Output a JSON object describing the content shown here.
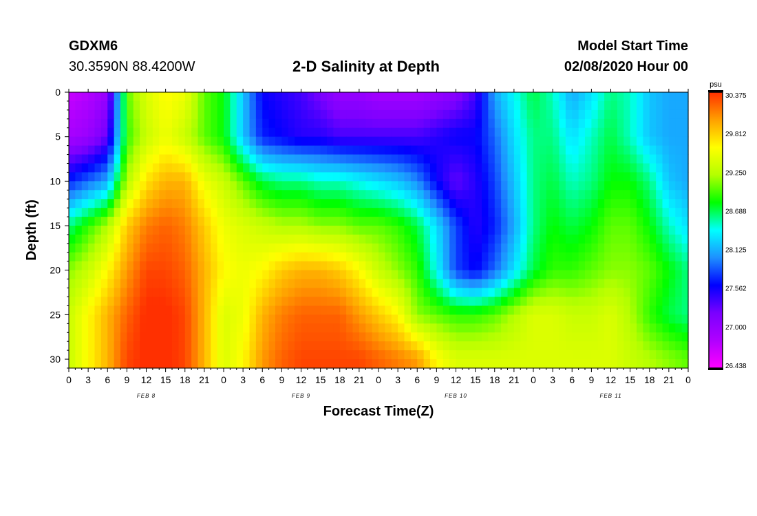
{
  "header": {
    "station_id": "GDXM6",
    "coordinates": "30.3590N 88.4200W",
    "title": "2-D Salinity at Depth",
    "model_start_label": "Model Start Time",
    "model_start_value": "02/08/2020 Hour 00"
  },
  "colors": {
    "scale": [
      "#ff00ff",
      "#b000ff",
      "#7a00ff",
      "#0000ff",
      "#1e90ff",
      "#00ffff",
      "#00ff00",
      "#b4ff00",
      "#ffff00",
      "#ffa000",
      "#ff3000"
    ]
  },
  "chart_data": {
    "type": "heatmap",
    "title": "2-D Salinity at Depth",
    "xlabel": "Forecast Time(Z)",
    "ylabel": "Depth (ft)",
    "x_hours_range": [
      0,
      96
    ],
    "x_tick_labels": [
      "0",
      "3",
      "6",
      "9",
      "12",
      "15",
      "18",
      "21",
      "0",
      "3",
      "6",
      "9",
      "12",
      "15",
      "18",
      "21",
      "0",
      "3",
      "6",
      "9",
      "12",
      "15",
      "18",
      "21",
      "0",
      "3",
      "6",
      "9",
      "12",
      "15",
      "18",
      "21",
      "0"
    ],
    "day_labels": [
      {
        "label": "FEB 8",
        "hour": 12
      },
      {
        "label": "FEB 9",
        "hour": 36
      },
      {
        "label": "FEB 10",
        "hour": 60
      },
      {
        "label": "FEB 11",
        "hour": 84
      }
    ],
    "y_range": [
      0,
      31
    ],
    "y_ticks": [
      0,
      5,
      10,
      15,
      20,
      25,
      30
    ],
    "y_tick_labels": [
      "0",
      "5",
      "10",
      "15",
      "20",
      "25",
      "30"
    ],
    "colorbar": {
      "unit": "psu",
      "min": 26.438,
      "max": 30.375,
      "labels": [
        "30.375",
        "29.812",
        "29.250",
        "28.688",
        "28.125",
        "27.562",
        "27.000",
        "26.438"
      ]
    },
    "grid_hours": [
      0,
      3,
      6,
      9,
      12,
      15,
      18,
      21,
      24,
      27,
      30,
      33,
      36,
      39,
      42,
      45,
      48,
      51,
      54,
      57,
      60,
      63,
      66,
      69,
      72,
      75,
      78,
      81,
      84,
      87,
      90,
      93,
      96
    ],
    "grid_depths": [
      0,
      5,
      10,
      15,
      20,
      25,
      30
    ],
    "salinity": [
      [
        26.7,
        26.8,
        27.0,
        29.0,
        29.4,
        29.6,
        29.5,
        29.0,
        28.8,
        28.2,
        27.6,
        27.5,
        27.4,
        27.2,
        27.0,
        27.0,
        26.9,
        26.9,
        26.9,
        27.0,
        27.1,
        27.4,
        28.1,
        28.4,
        28.7,
        28.5,
        28.1,
        28.3,
        28.6,
        28.5,
        28.2,
        28.1,
        28.1
      ],
      [
        26.9,
        27.0,
        27.3,
        28.9,
        29.3,
        29.5,
        29.3,
        29.0,
        28.8,
        28.2,
        27.7,
        27.6,
        27.5,
        27.5,
        27.4,
        27.4,
        27.4,
        27.4,
        27.4,
        27.5,
        27.6,
        27.6,
        27.9,
        28.3,
        28.6,
        28.6,
        28.3,
        28.5,
        28.7,
        28.5,
        28.2,
        28.1,
        28.1
      ],
      [
        27.7,
        27.9,
        28.1,
        29.2,
        29.7,
        29.9,
        29.9,
        29.5,
        29.3,
        29.0,
        28.7,
        28.6,
        28.6,
        28.5,
        28.5,
        28.4,
        28.3,
        28.2,
        28.0,
        27.6,
        27.3,
        27.5,
        27.8,
        28.2,
        28.6,
        28.7,
        28.5,
        28.6,
        28.8,
        28.8,
        28.6,
        28.2,
        28.1
      ],
      [
        28.6,
        28.9,
        29.2,
        29.8,
        30.1,
        30.2,
        30.1,
        29.8,
        29.5,
        29.4,
        29.3,
        29.2,
        29.2,
        29.1,
        29.1,
        29.0,
        29.0,
        28.9,
        28.7,
        28.3,
        27.8,
        27.5,
        27.7,
        28.1,
        28.6,
        28.8,
        28.7,
        28.8,
        29.0,
        29.0,
        28.8,
        28.5,
        28.3
      ],
      [
        29.1,
        29.3,
        29.6,
        30.0,
        30.3,
        30.3,
        30.2,
        29.9,
        29.6,
        29.5,
        29.6,
        29.8,
        29.9,
        29.9,
        29.8,
        29.6,
        29.3,
        29.1,
        28.9,
        28.4,
        27.8,
        27.6,
        27.9,
        28.3,
        28.7,
        28.9,
        28.9,
        29.0,
        29.1,
        29.1,
        29.0,
        28.8,
        28.6
      ],
      [
        29.3,
        29.6,
        29.9,
        30.2,
        30.4,
        30.4,
        30.3,
        29.9,
        29.4,
        29.5,
        29.9,
        30.1,
        30.2,
        30.2,
        30.2,
        30.0,
        29.8,
        29.6,
        29.1,
        29.0,
        28.9,
        28.9,
        29.0,
        29.2,
        29.4,
        29.4,
        29.3,
        29.3,
        29.4,
        29.2,
        28.9,
        28.7,
        28.6
      ],
      [
        29.3,
        29.6,
        29.9,
        30.3,
        30.4,
        30.4,
        30.3,
        29.9,
        29.4,
        29.6,
        30.0,
        30.2,
        30.3,
        30.3,
        30.3,
        30.3,
        30.2,
        30.1,
        30.0,
        29.6,
        29.4,
        29.4,
        29.4,
        29.4,
        29.4,
        29.4,
        29.4,
        29.4,
        29.4,
        29.3,
        29.2,
        29.1,
        29.0
      ]
    ]
  }
}
